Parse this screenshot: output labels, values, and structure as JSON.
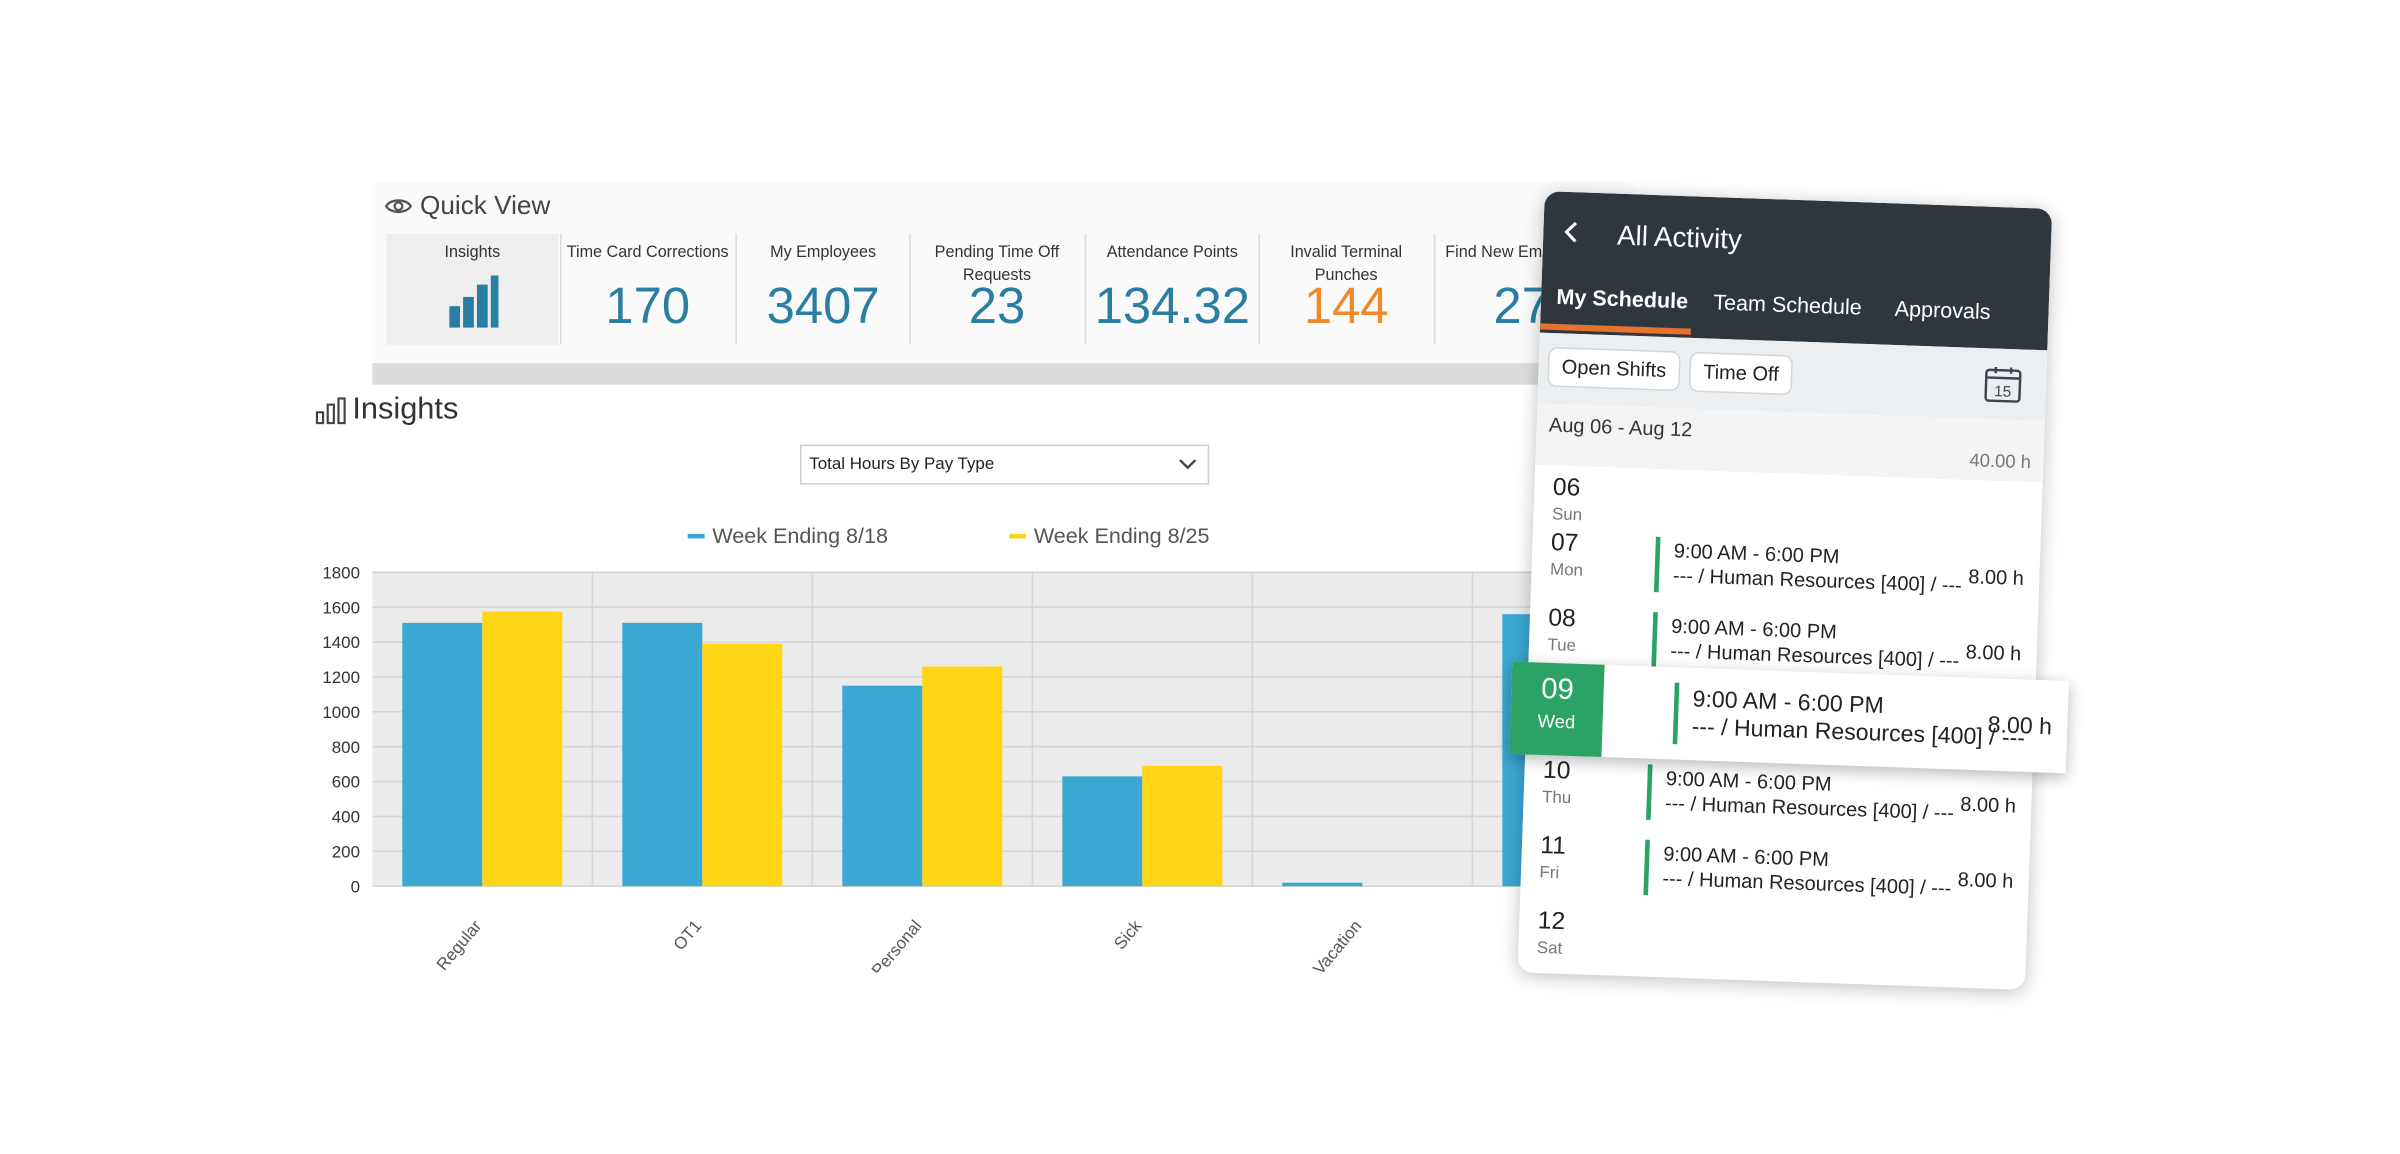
{
  "quick_view": {
    "title": "Quick View",
    "tiles": [
      {
        "label": "Insights",
        "value": ""
      },
      {
        "label": "Time Card Corrections",
        "value": "170"
      },
      {
        "label": "My Employees",
        "value": "3407"
      },
      {
        "label": "Pending Time Off Requests",
        "value": "23"
      },
      {
        "label": "Attendance Points",
        "value": "134.32"
      },
      {
        "label": "Invalid Terminal Punches",
        "value": "144"
      },
      {
        "label": "Find New Employees",
        "value": "27"
      }
    ]
  },
  "insights": {
    "title": "Insights",
    "dropdown_value": "Total Hours By Pay Type"
  },
  "chart_data": {
    "type": "bar",
    "categories": [
      "Regular",
      "OT1",
      "Personal",
      "Sick",
      "Vacation",
      ""
    ],
    "series": [
      {
        "name": "Week Ending 8/18",
        "color": "#3aa8d3",
        "values": [
          1510,
          1510,
          1150,
          630,
          20,
          1560
        ]
      },
      {
        "name": "Week Ending 8/25",
        "color": "#fed616",
        "values": [
          1575,
          1390,
          1260,
          690,
          0,
          0
        ]
      }
    ],
    "ylim": [
      0,
      1800
    ],
    "yticks": [
      "0",
      "200",
      "400",
      "600",
      "800",
      "1000",
      "1200",
      "1400",
      "1600",
      "1800"
    ],
    "grid": true,
    "legend": "top"
  },
  "mobile": {
    "title": "All Activity",
    "tabs": [
      "My Schedule",
      "Team Schedule",
      "Approvals"
    ],
    "filters": [
      "Open Shifts",
      "Time Off"
    ],
    "calendar_day": "15",
    "week_label": "Aug 06 - Aug 12",
    "week_total": "40.00 h",
    "days": [
      {
        "num": "06",
        "name": "Sun",
        "time": "",
        "dept": "",
        "hours": ""
      },
      {
        "num": "07",
        "name": "Mon",
        "time": "9:00 AM - 6:00 PM",
        "dept": "--- / Human Resources [400] / ---",
        "hours": "8.00 h"
      },
      {
        "num": "08",
        "name": "Tue",
        "time": "9:00 AM - 6:00 PM",
        "dept": "--- / Human Resources [400] / ---",
        "hours": "8.00 h"
      },
      {
        "num": "09",
        "name": "Wed",
        "time": "9:00 AM - 6:00 PM",
        "dept": "--- / Human Resources [400] / ---",
        "hours": "8.00 h"
      },
      {
        "num": "10",
        "name": "Thu",
        "time": "9:00 AM - 6:00 PM",
        "dept": "--- / Human Resources [400] / ---",
        "hours": "8.00 h"
      },
      {
        "num": "11",
        "name": "Fri",
        "time": "9:00 AM - 6:00 PM",
        "dept": "--- / Human Resources [400] / ---",
        "hours": "8.00 h"
      },
      {
        "num": "12",
        "name": "Sat",
        "time": "",
        "dept": "",
        "hours": ""
      }
    ]
  }
}
